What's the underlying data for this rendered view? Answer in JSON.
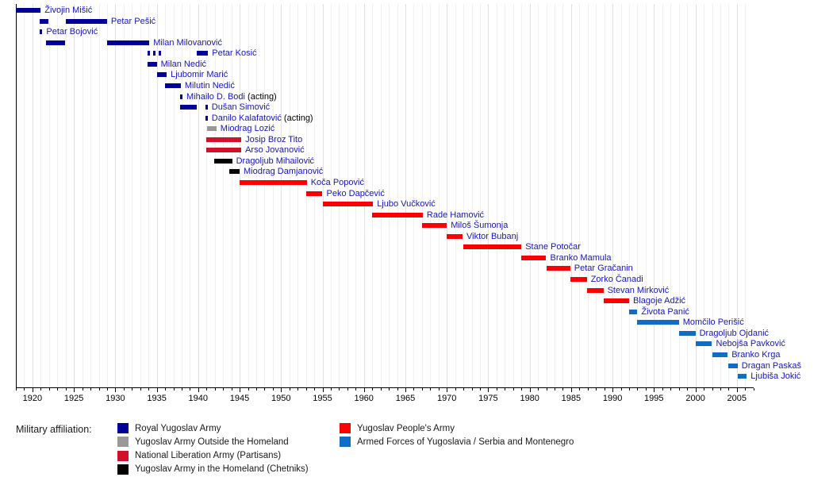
{
  "chart_data": {
    "type": "timeline",
    "label_color": "#1616B8",
    "axis": {
      "unit": "year",
      "start": 1918,
      "end": 2007,
      "minor_tick_every": 1,
      "major_tick_every": 5,
      "major_tick_labels": [
        "1920",
        "1925",
        "1930",
        "1935",
        "1940",
        "1945",
        "1950",
        "1955",
        "1960",
        "1965",
        "1970",
        "1975",
        "1980",
        "1985",
        "1990",
        "1995",
        "2000",
        "2005"
      ]
    },
    "legend": {
      "title": "Military affiliation:",
      "entries": [
        {
          "id": "royal",
          "label": "Royal Yugoslav Army",
          "color": "#000099",
          "column": 1
        },
        {
          "id": "outside",
          "label": "Yugoslav Army Outside the Homeland",
          "color": "#999999",
          "column": 1
        },
        {
          "id": "partisans",
          "label": "National Liberation Army (Partisans)",
          "color": "#D0112A",
          "column": 1
        },
        {
          "id": "chetniks",
          "label": "Yugoslav Army in the Homeland (Chetniks)",
          "color": "#000000",
          "column": 1
        },
        {
          "id": "peoples",
          "label": "Yugoslav People's Army",
          "color": "#FA0000",
          "column": 2
        },
        {
          "id": "afy",
          "label": "Armed Forces of Yugoslavia / Serbia and Montenegro",
          "color": "#106CC5",
          "column": 2
        }
      ]
    },
    "people": [
      {
        "name": "Živojin Mišić",
        "affiliation": "royal",
        "segments": [
          [
            1918.0,
            1921.0
          ]
        ]
      },
      {
        "name": "Petar Pešić",
        "affiliation": "royal",
        "segments": [
          [
            1920.9,
            1921.9
          ],
          [
            1924.0,
            1929.0
          ]
        ]
      },
      {
        "name": "Petar Bojović",
        "affiliation": "royal",
        "segments": [
          [
            1920.9,
            1921.2
          ]
        ]
      },
      {
        "name": "Milan Milovanović",
        "affiliation": "royal",
        "segments": [
          [
            1921.6,
            1923.9
          ],
          [
            1929.0,
            1934.1
          ]
        ]
      },
      {
        "name": "Petar Kosić",
        "affiliation": "royal",
        "segments": [
          [
            1933.9,
            1934.2
          ],
          [
            1934.55,
            1934.85
          ],
          [
            1935.2,
            1935.5
          ],
          [
            1939.8,
            1941.2
          ]
        ]
      },
      {
        "name": "Milan Nedić",
        "affiliation": "royal",
        "segments": [
          [
            1933.9,
            1935.0
          ]
        ]
      },
      {
        "name": "Ljubomir Marić",
        "affiliation": "royal",
        "segments": [
          [
            1935.0,
            1936.2
          ]
        ]
      },
      {
        "name": "Milutin Nedić",
        "affiliation": "royal",
        "segments": [
          [
            1936.0,
            1937.9
          ]
        ]
      },
      {
        "name": "Mihailo D. Bodi",
        "suffix": " (acting)",
        "affiliation": "royal",
        "segments": [
          [
            1937.8,
            1938.1
          ]
        ]
      },
      {
        "name": "Dušan Simović",
        "affiliation": "royal",
        "segments": [
          [
            1937.8,
            1939.8
          ],
          [
            1940.85,
            1941.15
          ]
        ]
      },
      {
        "name": "Danilo Kalafatović",
        "suffix": " (acting)",
        "affiliation": "royal",
        "segments": [
          [
            1940.85,
            1941.15
          ]
        ]
      },
      {
        "name": "Miodrag Lozić",
        "affiliation": "outside",
        "segments": [
          [
            1941.1,
            1942.2
          ]
        ]
      },
      {
        "name": "Josip Broz Tito",
        "affiliation": "partisans",
        "segments": [
          [
            1941.0,
            1945.2
          ]
        ]
      },
      {
        "name": "Arso Jovanović",
        "affiliation": "partisans",
        "segments": [
          [
            1941.0,
            1945.2
          ]
        ]
      },
      {
        "name": "Dragoljub Mihailović",
        "affiliation": "chetniks",
        "segments": [
          [
            1941.9,
            1944.1
          ]
        ]
      },
      {
        "name": "Miodrag Damjanović",
        "affiliation": "chetniks",
        "segments": [
          [
            1943.7,
            1945.0
          ]
        ]
      },
      {
        "name": "Koča Popović",
        "affiliation": "peoples",
        "segments": [
          [
            1945.0,
            1953.1
          ]
        ]
      },
      {
        "name": "Peko Dapčević",
        "affiliation": "peoples",
        "segments": [
          [
            1953.0,
            1955.0
          ]
        ]
      },
      {
        "name": "Ljubo Vučković",
        "affiliation": "peoples",
        "segments": [
          [
            1955.0,
            1961.1
          ]
        ]
      },
      {
        "name": "Rade Hamović",
        "affiliation": "peoples",
        "segments": [
          [
            1961.0,
            1967.1
          ]
        ]
      },
      {
        "name": "Miloš Šumonja",
        "affiliation": "peoples",
        "segments": [
          [
            1967.0,
            1970.0
          ]
        ]
      },
      {
        "name": "Viktor Bubanj",
        "affiliation": "peoples",
        "segments": [
          [
            1970.0,
            1971.9
          ]
        ]
      },
      {
        "name": "Stane Potočar",
        "affiliation": "peoples",
        "segments": [
          [
            1972.0,
            1979.0
          ]
        ]
      },
      {
        "name": "Branko Mamula",
        "affiliation": "peoples",
        "segments": [
          [
            1979.0,
            1982.0
          ]
        ]
      },
      {
        "name": "Petar Gračanin",
        "affiliation": "peoples",
        "segments": [
          [
            1982.0,
            1984.9
          ]
        ]
      },
      {
        "name": "Zorko Čanadi",
        "affiliation": "peoples",
        "segments": [
          [
            1984.9,
            1986.9
          ]
        ]
      },
      {
        "name": "Stevan Mirković",
        "affiliation": "peoples",
        "segments": [
          [
            1986.9,
            1988.9
          ]
        ]
      },
      {
        "name": "Blagoje Adžić",
        "affiliation": "peoples",
        "segments": [
          [
            1988.9,
            1992.0
          ]
        ]
      },
      {
        "name": "Života Panić",
        "affiliation": "afy",
        "segments": [
          [
            1992.0,
            1993.0
          ]
        ]
      },
      {
        "name": "Momčilo Perišić",
        "affiliation": "afy",
        "segments": [
          [
            1993.0,
            1998.0
          ]
        ]
      },
      {
        "name": "Dragoljub Ojdanić",
        "affiliation": "afy",
        "segments": [
          [
            1998.0,
            2000.0
          ]
        ]
      },
      {
        "name": "Nebojša Pavković",
        "affiliation": "afy",
        "segments": [
          [
            2000.0,
            2002.0
          ]
        ]
      },
      {
        "name": "Branko Krga",
        "affiliation": "afy",
        "segments": [
          [
            2002.0,
            2003.9
          ]
        ]
      },
      {
        "name": "Dragan Paskaš",
        "affiliation": "afy",
        "segments": [
          [
            2004.0,
            2005.1
          ]
        ]
      },
      {
        "name": "Ljubiša Jokić",
        "affiliation": "afy",
        "segments": [
          [
            2005.1,
            2006.2
          ]
        ]
      }
    ]
  }
}
